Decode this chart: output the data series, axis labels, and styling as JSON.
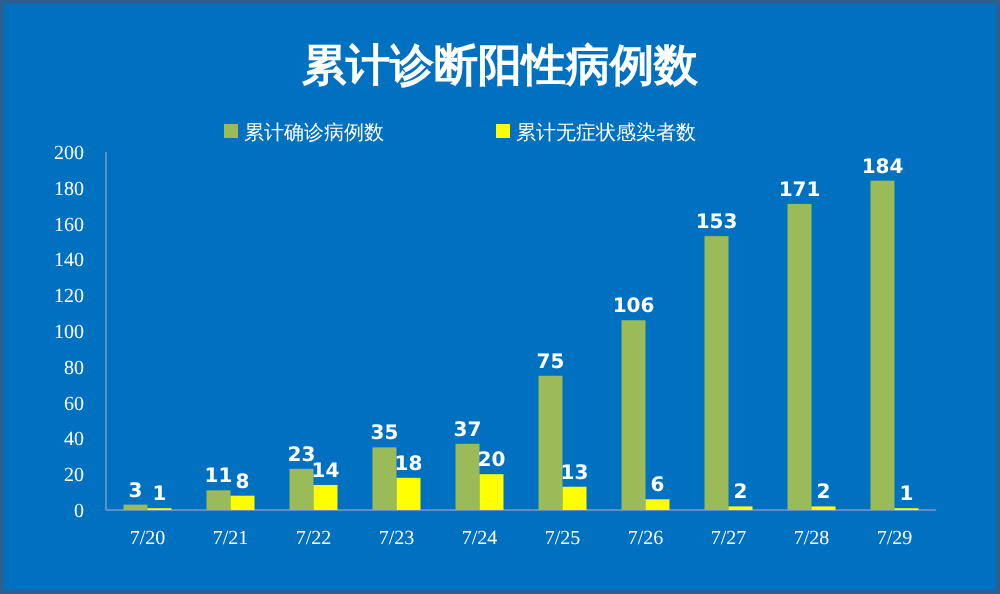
{
  "chart_data": {
    "type": "bar",
    "title": "累计诊断阳性病例数",
    "categories": [
      "7/20",
      "7/21",
      "7/22",
      "7/23",
      "7/24",
      "7/25",
      "7/26",
      "7/27",
      "7/28",
      "7/29"
    ],
    "series": [
      {
        "name": "累计确诊病例数",
        "color": "#9bbb59",
        "values": [
          3,
          11,
          23,
          35,
          37,
          75,
          106,
          153,
          171,
          184
        ]
      },
      {
        "name": "累计无症状感染者数",
        "color": "#ffff00",
        "values": [
          1,
          8,
          14,
          18,
          20,
          13,
          6,
          2,
          2,
          1
        ]
      }
    ],
    "ylim": [
      0,
      200
    ],
    "yticks": [
      0,
      20,
      40,
      60,
      80,
      100,
      120,
      140,
      160,
      180,
      200
    ],
    "data_labels": true,
    "grid": false,
    "legend": "top"
  }
}
